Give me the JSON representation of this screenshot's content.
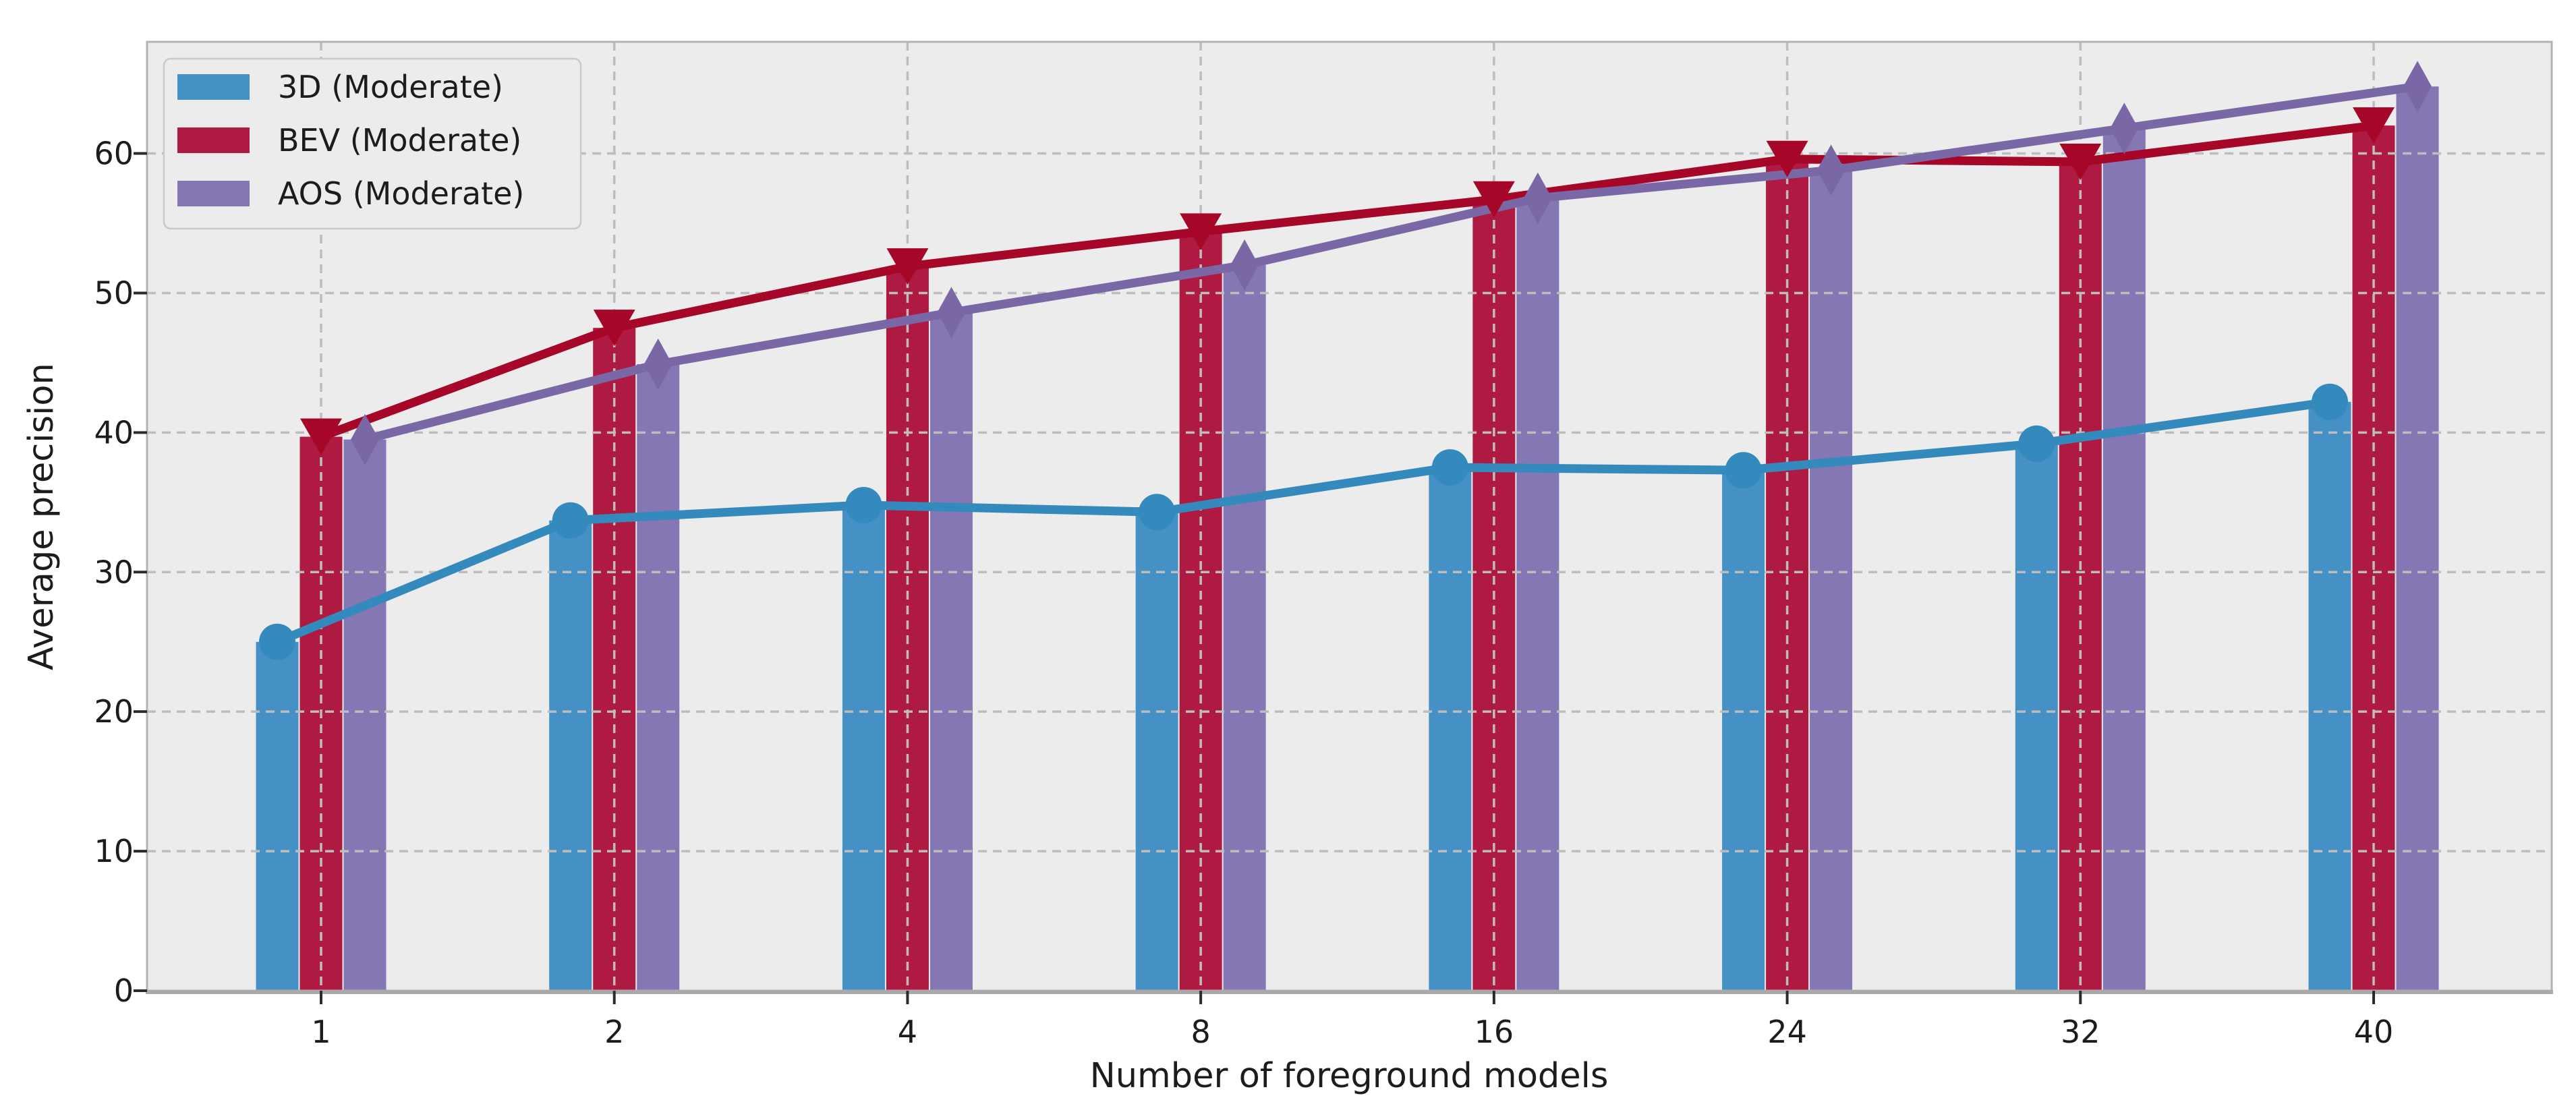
{
  "figure": {
    "background": "#ffffff",
    "plot_background": "#ececec",
    "grid_color": "#bdbdbd",
    "spine_color": "#b3b3b3",
    "tick_color": "#2b2b2b",
    "text_color": "#1c1c1c",
    "legend_border_color": "#c9c9c9"
  },
  "chart_data": {
    "type": "bar+line",
    "title": "",
    "xlabel": "Number of foreground models",
    "ylabel": "Average precision",
    "categories": [
      "1",
      "2",
      "4",
      "8",
      "16",
      "24",
      "32",
      "40"
    ],
    "y_ticks": [
      "0",
      "10",
      "20",
      "30",
      "40",
      "50",
      "60"
    ],
    "y_tick_values": [
      0,
      10,
      20,
      30,
      40,
      50,
      60
    ],
    "ylim": [
      0,
      68
    ],
    "grid": "dashed",
    "legend_position": "upper left",
    "series": [
      {
        "name": "3D (Moderate)",
        "marker": "circle",
        "line_color": "#348ABD",
        "bar_color": "#4591C5",
        "values": [
          25.0,
          33.7,
          34.8,
          34.3,
          37.5,
          37.3,
          39.2,
          42.2
        ]
      },
      {
        "name": "BEV (Moderate)",
        "marker": "triangle-down",
        "line_color": "#A60628",
        "bar_color": "#AF1A42",
        "values": [
          39.7,
          47.5,
          51.9,
          54.4,
          56.7,
          59.6,
          59.4,
          62.0
        ]
      },
      {
        "name": "AOS (Moderate)",
        "marker": "diamond",
        "line_color": "#7A68A6",
        "bar_color": "#8577B4",
        "values": [
          39.5,
          44.9,
          48.6,
          52.0,
          56.8,
          58.8,
          61.8,
          64.8
        ]
      }
    ]
  }
}
